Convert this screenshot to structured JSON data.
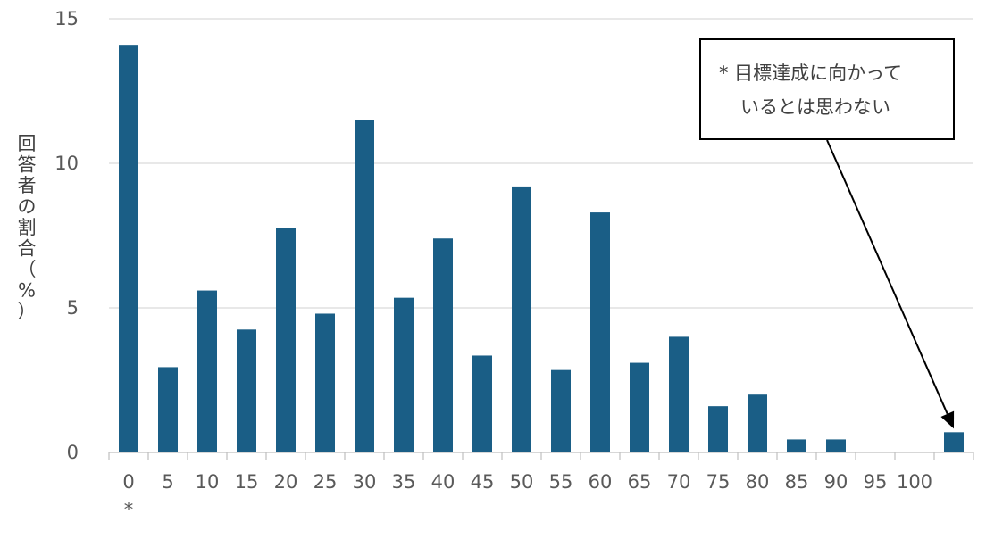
{
  "chart_data": {
    "type": "bar",
    "title": "",
    "xlabel": "",
    "ylabel": "回答者の割合（%）",
    "ylabel_chars": [
      "回",
      "答",
      "者",
      "の",
      "割",
      "合",
      "（",
      "%",
      "）"
    ],
    "ylim": [
      0,
      15
    ],
    "yticks": [
      "0",
      "5",
      "10",
      "15"
    ],
    "ytick_values": [
      0,
      5,
      10,
      15
    ],
    "grid": true,
    "bar_color": "#1a5e86",
    "categories": [
      "0",
      "5",
      "10",
      "15",
      "20",
      "25",
      "30",
      "35",
      "40",
      "45",
      "50",
      "55",
      "60",
      "65",
      "70",
      "75",
      "80",
      "85",
      "90",
      "95",
      "100",
      ""
    ],
    "values": [
      14.1,
      2.95,
      5.6,
      4.25,
      7.75,
      4.8,
      11.5,
      5.35,
      7.4,
      3.35,
      9.2,
      2.85,
      8.3,
      3.1,
      4.0,
      1.6,
      2.0,
      0.45,
      0.45,
      0,
      0,
      0.7
    ],
    "category_sublabel": {
      "index": 0,
      "text": "*"
    },
    "annotation": {
      "line1": "* 目標達成に向かって",
      "line2": "いるとは思わない",
      "points_to_index": 21
    }
  }
}
